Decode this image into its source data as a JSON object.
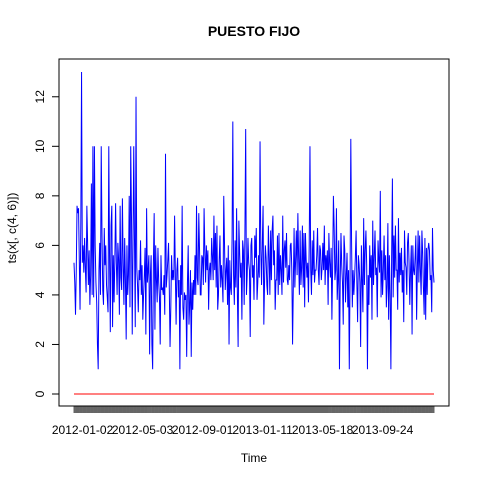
{
  "chart_data": {
    "type": "line",
    "title": "PUESTO FIJO",
    "xlabel": "Time",
    "ylabel": "ts(x[, c(4, 6)])",
    "ylim": [
      0,
      13
    ],
    "xlim": [
      0,
      420
    ],
    "y_ticks": [
      0,
      2,
      4,
      6,
      8,
      10,
      12
    ],
    "x_tick_labels": [
      {
        "label": "2012-01-02",
        "x": 10
      },
      {
        "label": "2012-05-03",
        "x": 80
      },
      {
        "label": "2012-09-01",
        "x": 150
      },
      {
        "label": "2013-01-11",
        "x": 220
      },
      {
        "label": "2013-05-18",
        "x": 290
      },
      {
        "label": "2013-09-24",
        "x": 360
      }
    ],
    "minor_tick_count": 360,
    "series": [
      {
        "color": "#0000ff",
        "values": [
          5.3,
          4.5,
          3.2,
          5.0,
          7.6,
          7.3,
          7.5,
          5.4,
          3.4,
          6.9,
          13.0,
          5.3,
          6.0,
          4.9,
          6.3,
          5.1,
          4.1,
          7.6,
          6.1,
          4.4,
          5.8,
          3.6,
          4.8,
          8.5,
          4.0,
          10.0,
          3.9,
          10.0,
          6.0,
          4.5,
          3.7,
          2.0,
          1.0,
          5.0,
          6.1,
          4.0,
          10.0,
          6.5,
          4.2,
          3.6,
          6.7,
          5.2,
          6.0,
          4.4,
          3.9,
          3.3,
          10.0,
          5.5,
          2.5,
          6.8,
          7.6,
          2.7,
          5.6,
          3.7,
          5.4,
          7.7,
          5.3,
          4.0,
          6.1,
          5.4,
          3.2,
          7.6,
          4.7,
          4.2,
          7.9,
          5.3,
          3.6,
          6.3,
          4.6,
          2.2,
          6.0,
          4.0,
          4.8,
          8.0,
          3.5,
          10.0,
          7.2,
          2.4,
          6.0,
          10.0,
          6.2,
          2.7,
          12.0,
          5.1,
          4.4,
          3.3,
          5.0,
          4.6,
          6.2,
          4.0,
          5.2,
          3.0,
          4.0,
          4.8,
          5.9,
          2.4,
          7.5,
          4.5,
          5.0,
          5.6,
          1.6,
          4.8,
          5.6,
          2.0,
          1.0,
          5.3,
          7.3,
          2.6,
          6.0,
          4.6,
          3.7,
          5.9,
          4.5,
          3.9,
          2.0,
          5.6,
          4.2,
          4.3,
          4.0,
          4.8,
          3.2,
          9.7,
          4.3,
          4.8,
          5.4,
          6.1,
          4.3,
          1.9,
          3.5,
          5.6,
          4.6,
          5.0,
          4.6,
          7.2,
          4.9,
          2.8,
          5.0,
          5.5,
          3.9,
          4.6,
          1.0,
          5.2,
          4.0,
          7.6,
          3.5,
          3.0,
          4.1,
          3.8,
          4.0,
          1.5,
          4.5,
          6.0,
          2.8,
          3.6,
          5.0,
          1.5,
          4.5,
          3.4,
          4.6,
          4.0,
          5.6,
          4.0,
          7.6,
          4.7,
          4.4,
          7.3,
          5.8,
          4.0,
          4.0,
          5.6,
          5.5,
          4.4,
          7.5,
          5.8,
          4.5,
          6.0,
          5.0,
          5.8,
          3.4,
          5.0,
          5.3,
          4.6,
          6.3,
          5.6,
          4.6,
          7.2,
          5.0,
          6.5,
          4.3,
          6.8,
          3.4,
          4.0,
          5.4,
          6.4,
          4.3,
          5.2,
          4.6,
          3.7,
          8.0,
          6.1,
          4.2,
          5.0,
          5.5,
          3.6,
          6.0,
          2.0,
          5.4,
          4.3,
          4.0,
          6.3,
          11.0,
          4.8,
          3.6,
          6.2,
          4.3,
          7.5,
          4.1,
          1.9,
          7.0,
          5.7,
          4.7,
          5.3,
          3.0,
          6.2,
          5.8,
          3.6,
          6.5,
          10.7,
          4.0,
          4.8,
          6.3,
          5.3,
          5.0,
          2.3,
          6.0,
          6.3,
          4.7,
          5.2,
          3.8,
          6.4,
          5.5,
          6.7,
          3.8,
          4.5,
          5.6,
          4.7,
          10.2,
          5.8,
          4.4,
          6.1,
          7.6,
          2.8,
          4.6,
          6.0,
          5.5,
          4.4,
          4.0,
          6.8,
          5.5,
          4.0,
          6.6,
          4.6,
          6.6,
          7.2,
          5.2,
          5.8,
          3.4,
          4.6,
          4.6,
          6.4,
          4.0,
          6.5,
          4.4,
          5.6,
          5.0,
          4.0,
          7.2,
          4.5,
          5.8,
          6.2,
          5.1,
          6.5,
          4.6,
          4.4,
          5.2,
          4.6,
          6.0,
          6.1,
          5.0,
          2.0,
          4.4,
          6.7,
          4.3,
          5.4,
          6.6,
          4.8,
          7.3,
          5.5,
          4.0,
          6.6,
          4.4,
          5.1,
          6.8,
          4.3,
          6.5,
          3.5,
          6.5,
          5.4,
          4.7,
          5.3,
          3.7,
          6.0,
          10.0,
          5.0,
          4.0,
          6.2,
          4.8,
          6.6,
          4.5,
          5.0,
          5.0,
          5.6,
          6.7,
          5.0,
          4.4,
          6.0,
          5.8,
          4.6,
          5.1,
          6.1,
          5.0,
          6.8,
          4.4,
          5.6,
          5.0,
          5.8,
          3.6,
          6.5,
          5.3,
          4.7,
          5.9,
          3.0,
          5.2,
          8.0,
          6.7,
          4.6,
          5.0,
          7.5,
          3.8,
          4.6,
          6.2,
          1.0,
          4.6,
          6.5,
          5.2,
          4.5,
          2.8,
          6.4,
          5.8,
          3.7,
          4.8,
          5.7,
          3.5,
          5.0,
          1.0,
          4.6,
          10.3,
          6.2,
          3.5,
          5.0,
          4.0,
          4.7,
          5.5,
          6.6,
          4.5,
          2.9,
          5.6,
          5.2,
          4.5,
          1.9,
          6.0,
          4.6,
          3.3,
          7.1,
          4.4,
          5.8,
          6.6,
          5.2,
          1.0,
          4.8,
          3.6,
          6.0,
          4.7,
          5.6,
          3.0,
          7.0,
          4.4,
          5.5,
          6.6,
          4.8,
          5.1,
          3.1,
          6.2,
          5.4,
          4.9,
          8.2,
          3.9,
          5.8,
          4.0,
          5.0,
          6.4,
          4.6,
          5.6,
          3.5,
          4.4,
          6.9,
          3.0,
          5.6,
          4.0,
          1.0,
          5.6,
          8.7,
          3.9,
          6.4,
          4.7,
          6.8,
          5.0,
          5.0,
          3.4,
          7.1,
          4.5,
          5.7,
          4.8,
          5.9,
          4.1,
          5.0,
          2.9,
          6.6,
          5.3,
          5.1,
          4.0,
          6.1,
          6.5,
          5.3,
          3.6,
          5.0,
          6.0,
          2.4,
          6.0,
          5.0,
          4.8,
          5.5,
          6.4,
          3.0,
          5.0,
          6.6,
          4.5,
          6.4,
          5.0,
          4.0,
          6.6,
          5.7,
          4.3,
          3.2,
          6.3,
          3.0,
          5.9,
          4.0,
          5.8,
          6.1,
          5.8,
          4.6,
          4.8,
          3.3,
          6.7,
          5.0,
          4.5
        ]
      },
      {
        "color": "#ff0000",
        "values": [
          0,
          0
        ]
      }
    ]
  }
}
